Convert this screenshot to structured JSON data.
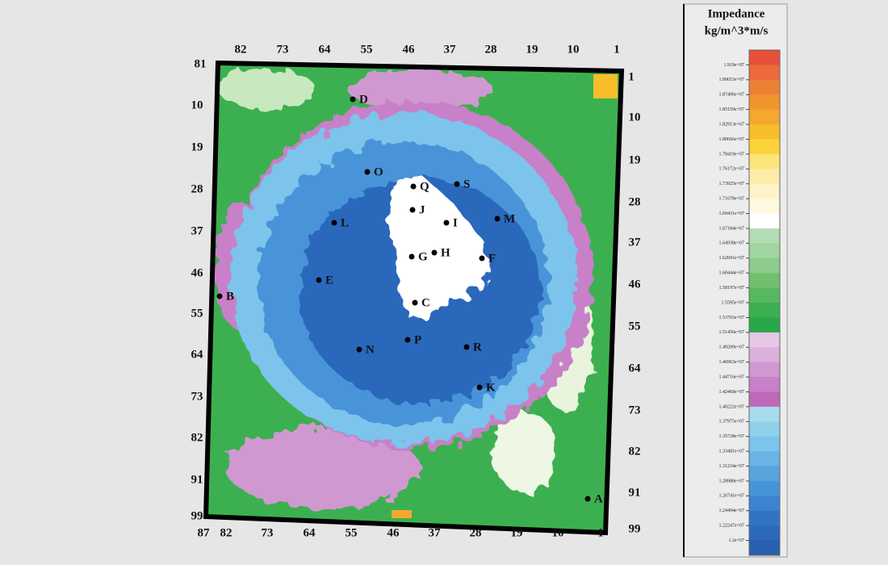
{
  "map": {
    "corner_label": "81",
    "axis_top": [
      "82",
      "73",
      "64",
      "55",
      "46",
      "37",
      "28",
      "19",
      "10",
      "1"
    ],
    "axis_left": [
      "10",
      "19",
      "28",
      "37",
      "46",
      "55",
      "64",
      "73",
      "82",
      "91",
      "99"
    ],
    "axis_right": [
      "1",
      "10",
      "19",
      "28",
      "37",
      "46",
      "55",
      "64",
      "73",
      "82",
      "91",
      "99"
    ],
    "axis_bottom": [
      "87",
      "82",
      "73",
      "64",
      "55",
      "46",
      "37",
      "28",
      "19",
      "10",
      "1"
    ],
    "points": [
      "D",
      "O",
      "Q",
      "S",
      "J",
      "L",
      "I",
      "M",
      "G",
      "H",
      "F",
      "E",
      "B",
      "C",
      "P",
      "N",
      "R",
      "K",
      "A"
    ]
  },
  "legend": {
    "title": [
      "Impedance",
      "kg/m^3*m/s"
    ],
    "ticks": [
      "1.919e+07",
      "1.89653e+07",
      "1.87406e+07",
      "1.85159e+07",
      "1.82913e+07",
      "1.80666e+07",
      "1.78419e+07",
      "1.76172e+07",
      "1.73925e+07",
      "1.71678e+07",
      "1.69431e+07",
      "1.67184e+07",
      "1.64938e+07",
      "1.62691e+07",
      "1.60444e+07",
      "1.58197e+07",
      "1.5595e+07",
      "1.53703e+07",
      "1.51456e+07",
      "1.49209e+07",
      "1.46963e+07",
      "1.44716e+07",
      "1.42469e+07",
      "1.40222e+07",
      "1.37975e+07",
      "1.35728e+07",
      "1.33481e+07",
      "1.31234e+07",
      "1.28988e+07",
      "1.26741e+07",
      "1.24494e+07",
      "1.22247e+07",
      "1.2e+07"
    ]
  }
}
